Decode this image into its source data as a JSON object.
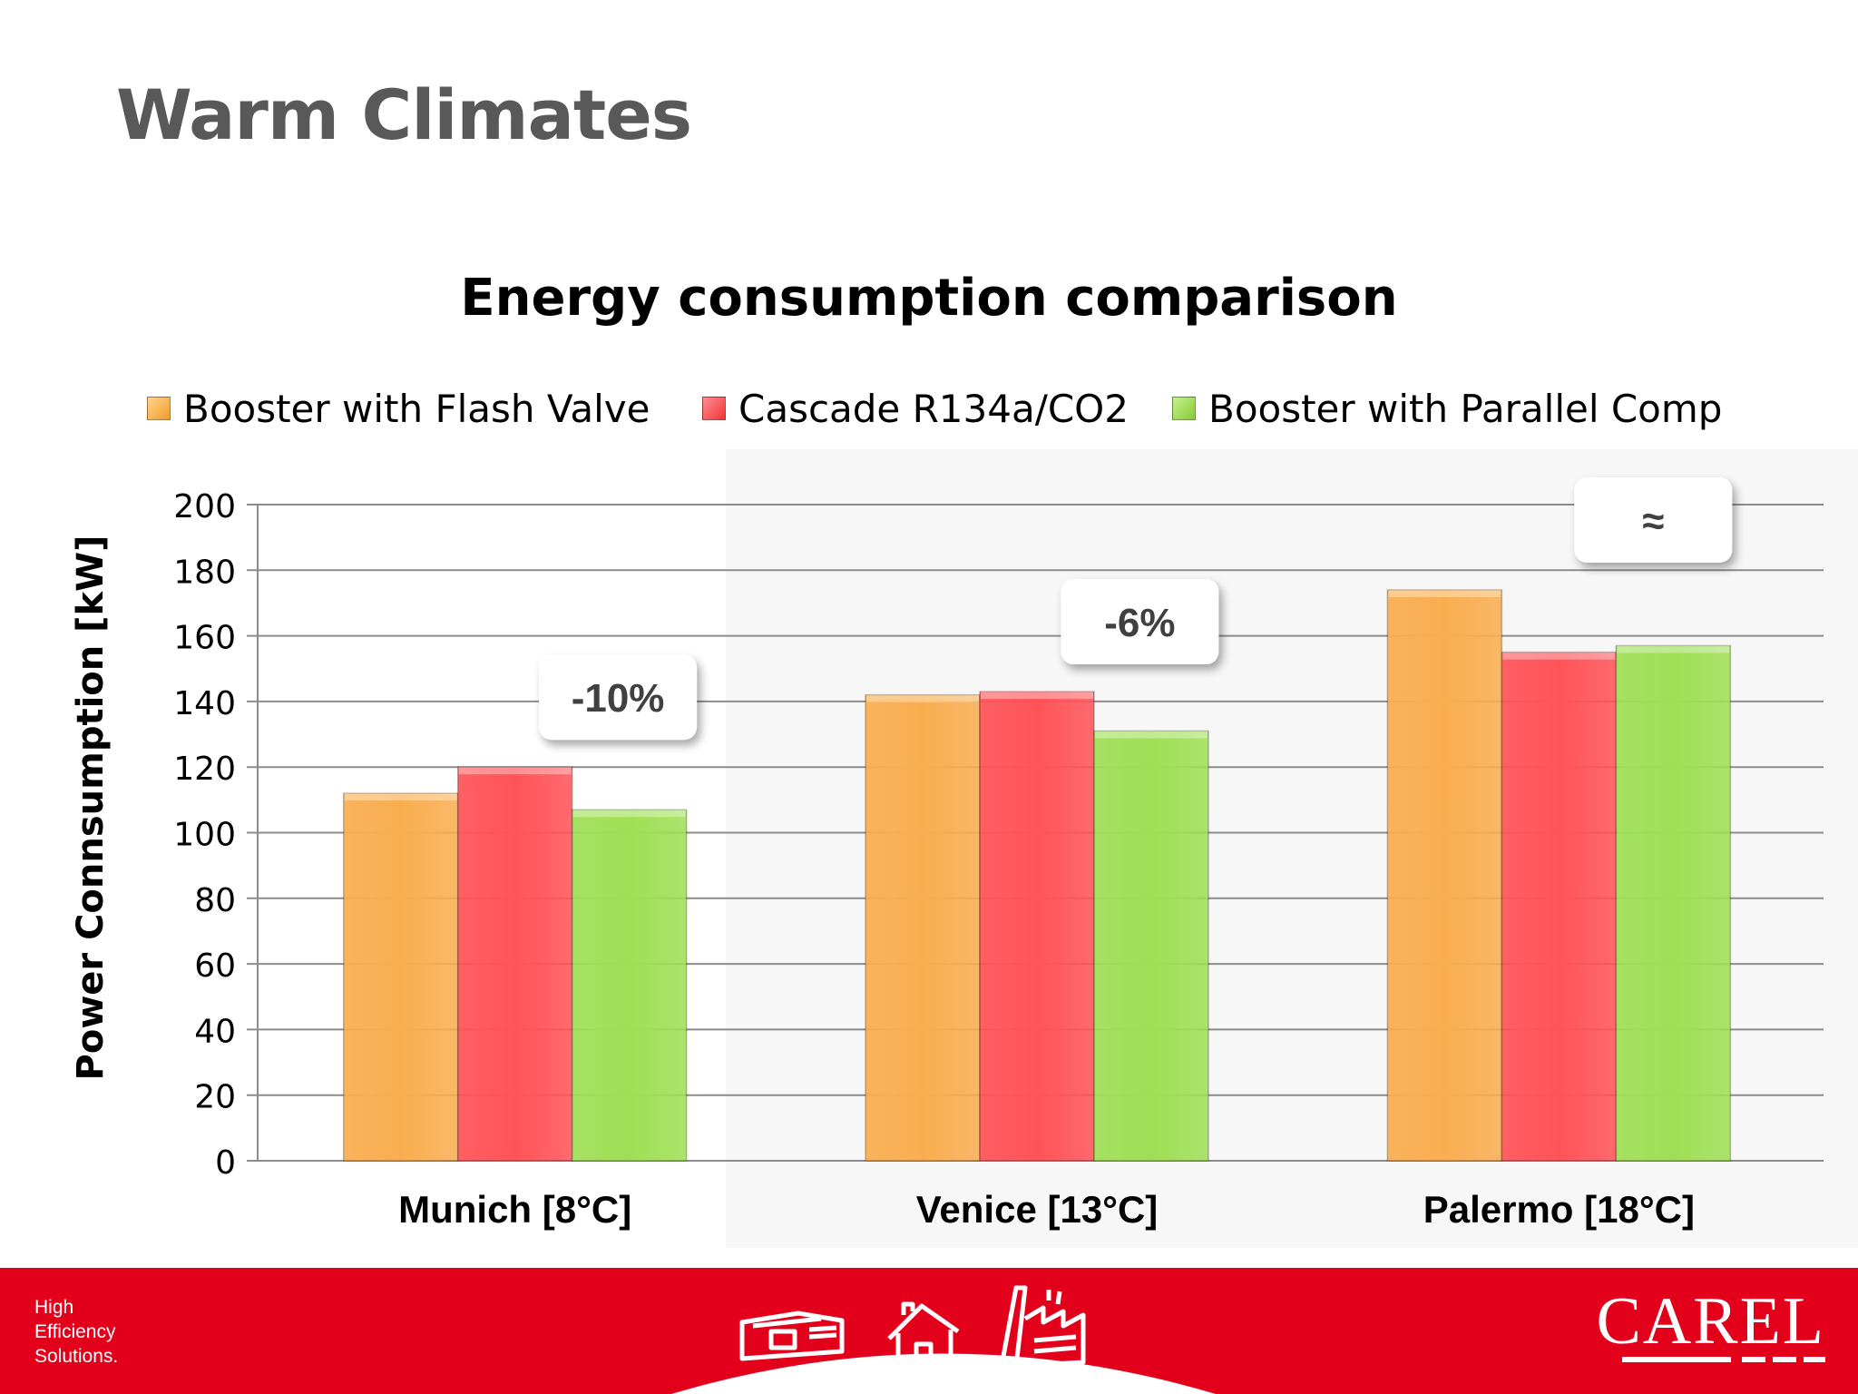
{
  "slide": {
    "title": "Warm Climates"
  },
  "chart_data": {
    "type": "bar",
    "title": "Energy consumption comparison",
    "ylabel": "Power Connsumption [kW]",
    "xlabel": "",
    "ylim": [
      0,
      200
    ],
    "yticks": [
      0,
      20,
      40,
      60,
      80,
      100,
      120,
      140,
      160,
      180,
      200
    ],
    "grid": true,
    "legend_position": "top",
    "categories": [
      "Munich [8°C]",
      "Venice [13°C]",
      "Palermo [18°C]"
    ],
    "series": [
      {
        "name": "Booster with Flash Valve",
        "color": "#f9ad4f",
        "values": [
          112,
          142,
          174
        ]
      },
      {
        "name": "Cascade R134a/CO2",
        "color": "#ff5357",
        "values": [
          120,
          143,
          155
        ]
      },
      {
        "name": "Booster with Parallel Comp",
        "color": "#9fdf55",
        "values": [
          107,
          131,
          157
        ]
      }
    ],
    "annotations": [
      {
        "category": "Munich [8°C]",
        "text": "-10%"
      },
      {
        "category": "Venice [13°C]",
        "text": "-6%"
      },
      {
        "category": "Palermo [18°C]",
        "text": "≈"
      }
    ]
  },
  "footer": {
    "tagline": [
      "High",
      "Efficiency",
      "Solutions."
    ],
    "logo_text": "CAREL",
    "background_color": "#e2001a"
  }
}
